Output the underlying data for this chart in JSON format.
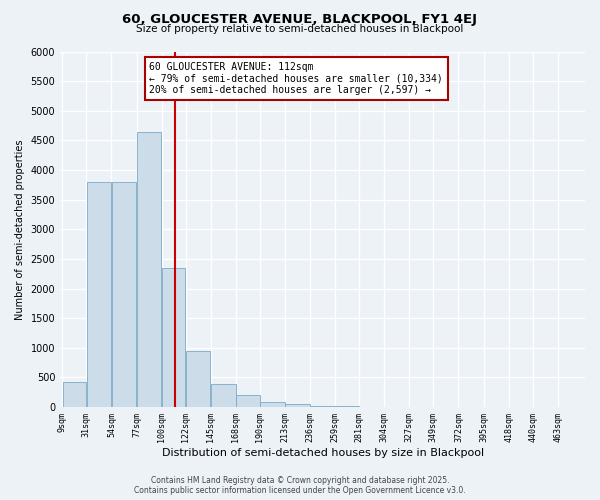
{
  "title": "60, GLOUCESTER AVENUE, BLACKPOOL, FY1 4EJ",
  "subtitle": "Size of property relative to semi-detached houses in Blackpool",
  "xlabel": "Distribution of semi-detached houses by size in Blackpool",
  "ylabel": "Number of semi-detached properties",
  "annotation_title": "60 GLOUCESTER AVENUE: 112sqm",
  "annotation_line1": "← 79% of semi-detached houses are smaller (10,334)",
  "annotation_line2": "20% of semi-detached houses are larger (2,597) →",
  "footer_line1": "Contains HM Land Registry data © Crown copyright and database right 2025.",
  "footer_line2": "Contains public sector information licensed under the Open Government Licence v3.0.",
  "bin_labels": [
    "9sqm",
    "31sqm",
    "54sqm",
    "77sqm",
    "100sqm",
    "122sqm",
    "145sqm",
    "168sqm",
    "190sqm",
    "213sqm",
    "236sqm",
    "259sqm",
    "281sqm",
    "304sqm",
    "327sqm",
    "349sqm",
    "372sqm",
    "395sqm",
    "418sqm",
    "440sqm",
    "463sqm"
  ],
  "bin_edges": [
    9,
    31,
    54,
    77,
    100,
    122,
    145,
    168,
    190,
    213,
    236,
    259,
    281,
    304,
    327,
    349,
    372,
    395,
    418,
    440,
    463
  ],
  "bar_values": [
    430,
    3800,
    3800,
    4650,
    2350,
    950,
    390,
    200,
    80,
    50,
    20,
    10,
    5,
    5,
    3,
    2,
    1,
    0,
    0,
    0
  ],
  "bar_color": "#ccdce8",
  "bar_edge_color": "#7aaac8",
  "vline_color": "#cc0000",
  "vline_x": 112,
  "annotation_box_edge_color": "#aa0000",
  "background_color": "#edf2f7",
  "grid_color": "#ffffff",
  "ylim": [
    0,
    6000
  ],
  "yticks": [
    0,
    500,
    1000,
    1500,
    2000,
    2500,
    3000,
    3500,
    4000,
    4500,
    5000,
    5500,
    6000
  ]
}
